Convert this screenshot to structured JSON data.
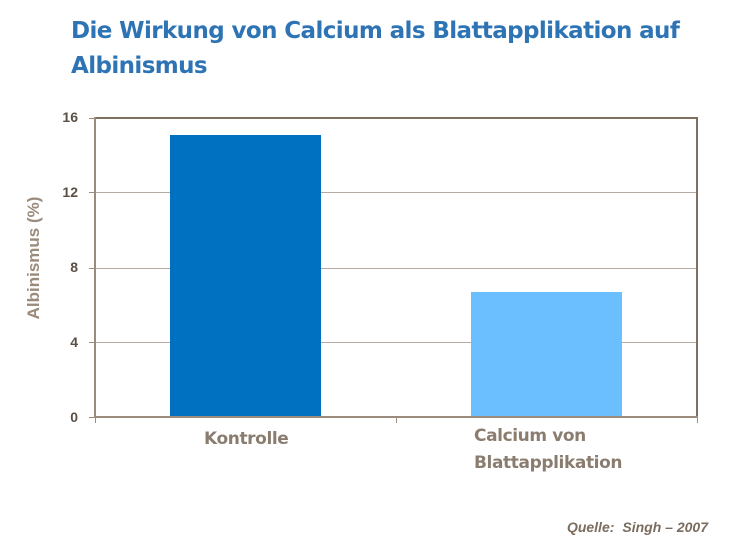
{
  "header": {
    "title": "Die Wirkung von Calcium als Blattapplikation auf Albinismus"
  },
  "chart_data": {
    "type": "bar",
    "title": "Die Wirkung von Calcium als Blattapplikation auf Albinismus",
    "xlabel": "",
    "ylabel": "Albinismus (%)",
    "ylim": [
      0,
      16
    ],
    "yticks": [
      "0",
      "4",
      "8",
      "12",
      "16"
    ],
    "grid": true,
    "legend": null,
    "categories": [
      "Kontrolle",
      "Calcium von Blattapplikation"
    ],
    "values": [
      15.1,
      6.7
    ],
    "colors": [
      "#0070c0",
      "#6bbfff"
    ]
  },
  "axis": {
    "y_title": "Albinismus (%)",
    "y_ticks": [
      "16",
      "12",
      "8",
      "4",
      "0"
    ],
    "x_categories": [
      {
        "line1": "Kontrolle",
        "line2": ""
      },
      {
        "line1": "Calcium von",
        "line2": "Blattapplikation"
      }
    ]
  },
  "source": {
    "label": "Quelle:",
    "value": "Singh – 2007"
  }
}
